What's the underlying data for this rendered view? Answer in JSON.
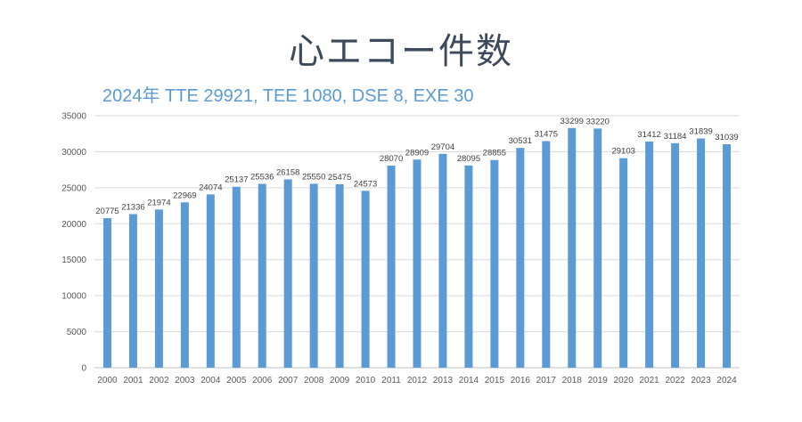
{
  "chart_data": {
    "type": "bar",
    "title": "心エコー件数",
    "subtitle": "2024年 TTE 29921, TEE 1080, DSE 8, EXE 30",
    "categories": [
      "2000",
      "2001",
      "2002",
      "2003",
      "2004",
      "2005",
      "2006",
      "2007",
      "2008",
      "2009",
      "2010",
      "2011",
      "2012",
      "2013",
      "2014",
      "2015",
      "2016",
      "2017",
      "2018",
      "2019",
      "2020",
      "2021",
      "2022",
      "2023",
      "2024"
    ],
    "values": [
      20775,
      21336,
      21974,
      22969,
      24074,
      25137,
      25536,
      26158,
      25550,
      25475,
      24573,
      28070,
      28909,
      29704,
      28095,
      28855,
      30531,
      31475,
      33299,
      33220,
      29103,
      31412,
      31184,
      31839,
      31039
    ],
    "ylim": [
      0,
      35000
    ],
    "yticks": [
      0,
      5000,
      10000,
      15000,
      20000,
      25000,
      30000,
      35000
    ],
    "grid": true,
    "xlabel": "",
    "ylabel": "",
    "bar_color": "#5b9bd5"
  }
}
